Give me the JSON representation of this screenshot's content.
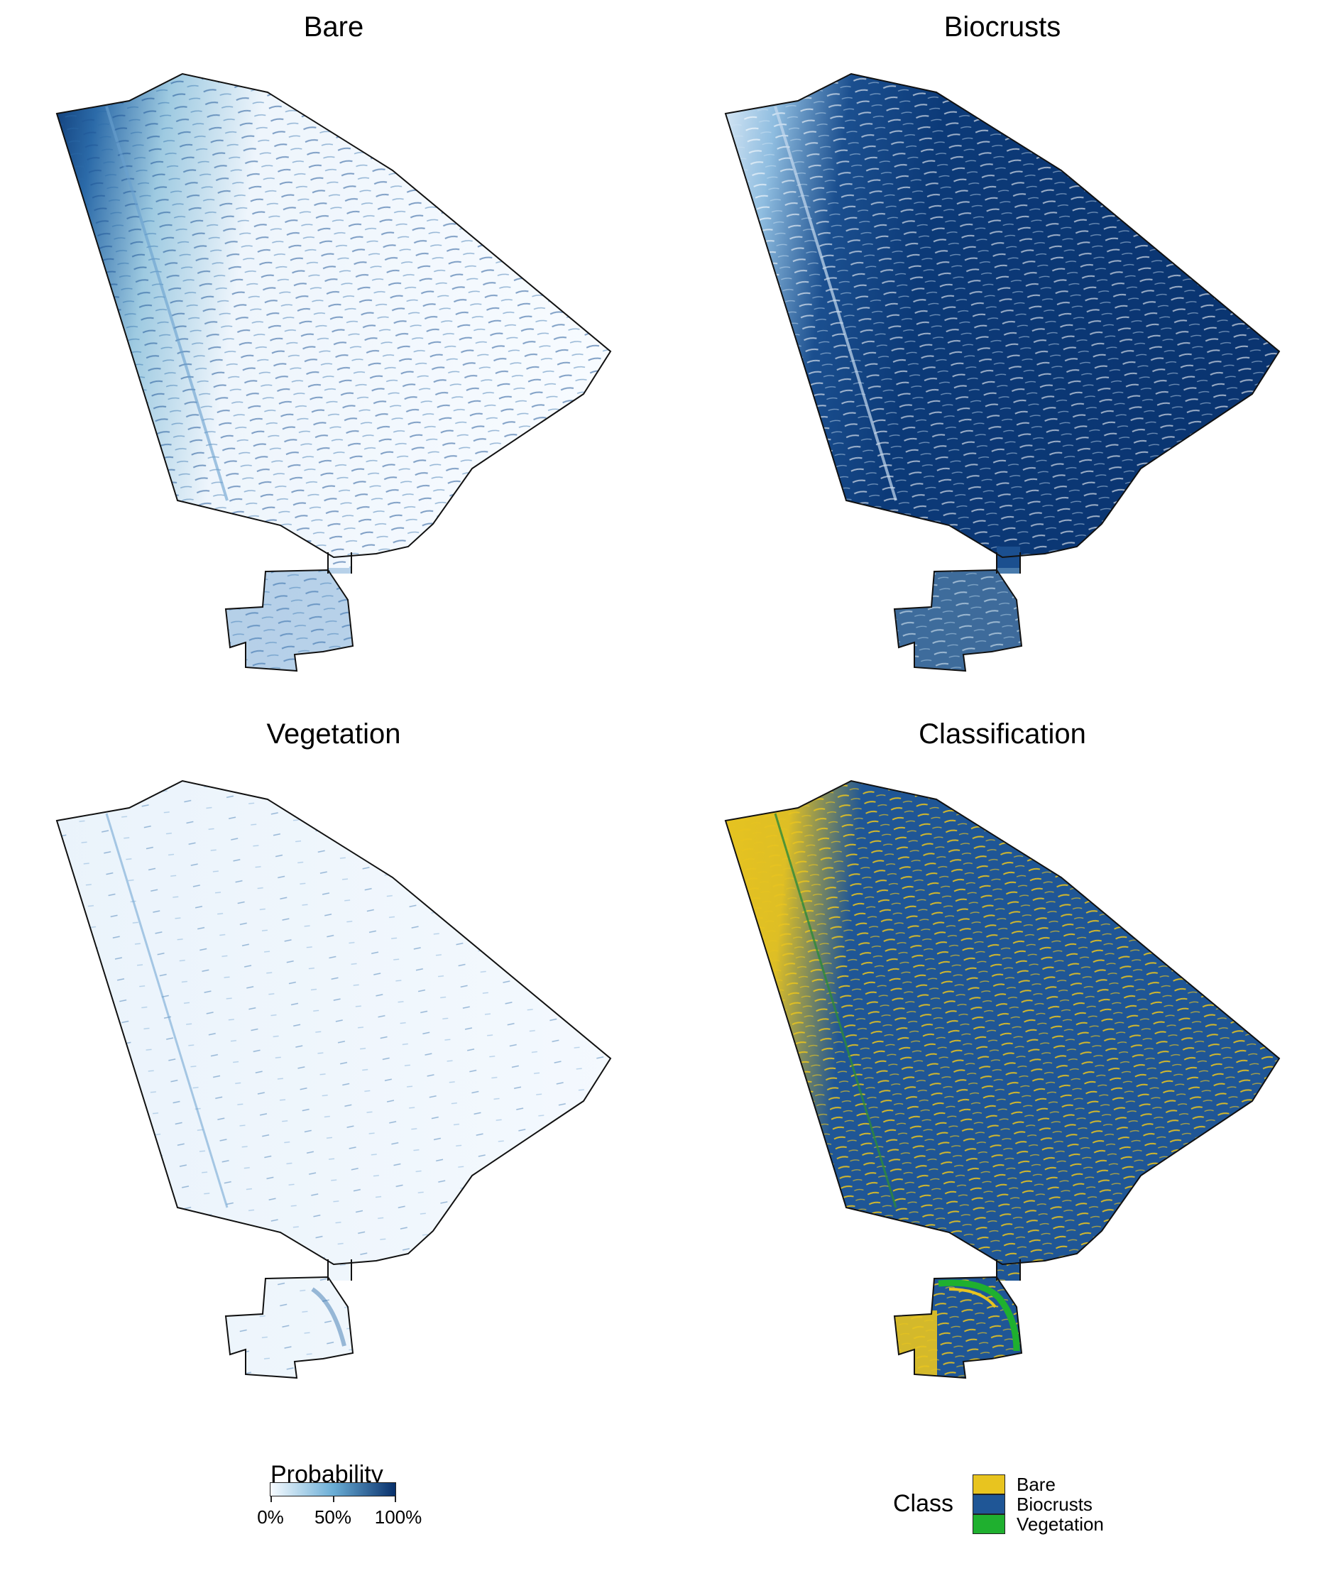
{
  "panels": [
    {
      "id": "bare",
      "title": "Bare"
    },
    {
      "id": "biocrusts",
      "title": "Biocrusts"
    },
    {
      "id": "vegetation",
      "title": "Vegetation"
    },
    {
      "id": "classification",
      "title": "Classification"
    }
  ],
  "probability_legend": {
    "title": "Probability",
    "ticks": [
      "0%",
      "50%",
      "100%"
    ],
    "colors": {
      "low": "#f7fbff",
      "mid": "#6baed6",
      "high": "#08306b"
    }
  },
  "class_legend": {
    "title": "Class",
    "items": [
      {
        "label": "Bare",
        "color": "#e8c41f"
      },
      {
        "label": "Biocrusts",
        "color": "#1f5696"
      },
      {
        "label": "Vegetation",
        "color": "#1fb02f"
      }
    ]
  },
  "colors": {
    "bare_class": "#e8c41f",
    "biocrusts_class": "#1f5696",
    "vegetation_class": "#1fb02f",
    "probability_low": "#f7fbff",
    "probability_high": "#08306b"
  }
}
